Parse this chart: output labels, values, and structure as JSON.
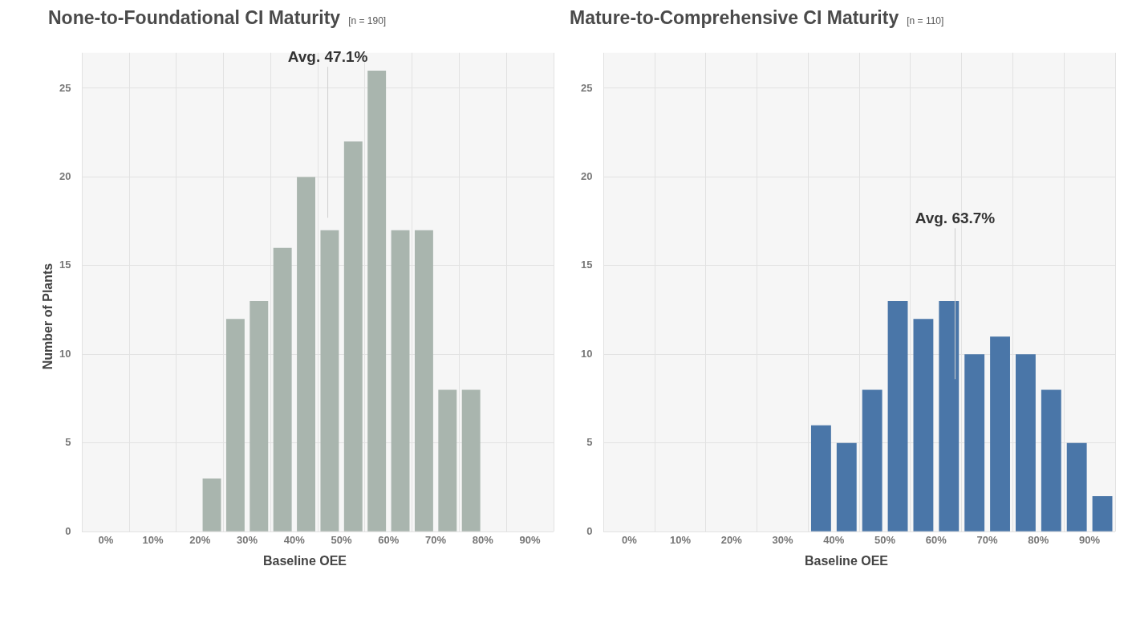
{
  "chart_data": [
    {
      "type": "histogram",
      "title": "None-to-Foundational CI Maturity",
      "subtitle": "[n = 190]",
      "xlabel": "Baseline OEE",
      "ylabel": "Number of Plants",
      "bins": [
        20,
        25,
        30,
        35,
        40,
        45,
        50,
        55,
        60,
        65,
        70,
        75,
        80
      ],
      "values": [
        3,
        12,
        13,
        16,
        20,
        17,
        22,
        26,
        17,
        17,
        8,
        8
      ],
      "color": "#a9b5ae",
      "xlim": [
        -5,
        95
      ],
      "xticks": [
        {
          "value": 0,
          "label": "0%"
        },
        {
          "value": 10,
          "label": "10%"
        },
        {
          "value": 20,
          "label": "20%"
        },
        {
          "value": 30,
          "label": "30%"
        },
        {
          "value": 40,
          "label": "40%"
        },
        {
          "value": 50,
          "label": "50%"
        },
        {
          "value": 60,
          "label": "60%"
        },
        {
          "value": 70,
          "label": "70%"
        },
        {
          "value": 80,
          "label": "80%"
        },
        {
          "value": 90,
          "label": "90%"
        }
      ],
      "ylim": [
        0,
        27
      ],
      "yticks": [
        0,
        5,
        10,
        15,
        20,
        25
      ],
      "grid": true,
      "legend": false,
      "ref_lines": [
        {
          "axis": "x",
          "value": 47.1,
          "label": "Avg. 47.1%"
        }
      ]
    },
    {
      "type": "histogram",
      "title": "Mature-to-Comprehensive CI Maturity",
      "subtitle": "[n = 110]",
      "xlabel": "Baseline OEE",
      "bins": [
        35,
        40,
        45,
        50,
        55,
        60,
        65,
        70,
        75,
        80,
        85,
        90,
        95
      ],
      "values": [
        6,
        5,
        8,
        13,
        12,
        13,
        10,
        11,
        10,
        8,
        5,
        2
      ],
      "color": "#4a76a8",
      "xlim": [
        -5,
        95
      ],
      "xticks": [
        {
          "value": 0,
          "label": "0%"
        },
        {
          "value": 10,
          "label": "10%"
        },
        {
          "value": 20,
          "label": "20%"
        },
        {
          "value": 30,
          "label": "30%"
        },
        {
          "value": 40,
          "label": "40%"
        },
        {
          "value": 50,
          "label": "50%"
        },
        {
          "value": 60,
          "label": "60%"
        },
        {
          "value": 70,
          "label": "70%"
        },
        {
          "value": 80,
          "label": "80%"
        },
        {
          "value": 90,
          "label": "90%"
        }
      ],
      "ylim": [
        0,
        27
      ],
      "yticks": [
        0,
        5,
        10,
        15,
        20,
        25
      ],
      "grid": true,
      "legend": false,
      "ref_lines": [
        {
          "axis": "x",
          "value": 63.7,
          "label": "Avg. 63.7%"
        }
      ]
    }
  ]
}
